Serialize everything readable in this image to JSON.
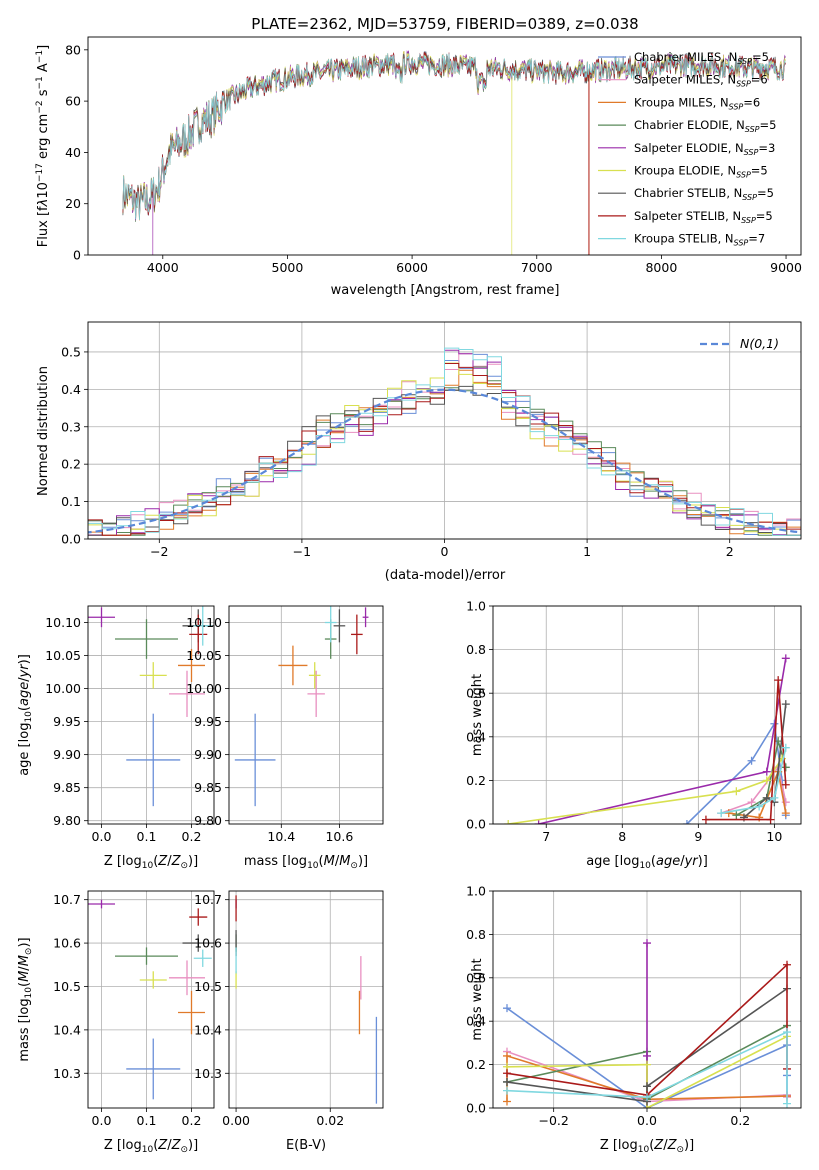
{
  "figure_title": "PLATE=2362, MJD=53759, FIBERID=0389, z=0.038",
  "colors": {
    "Chabrier MILES": "#6a8fd8",
    "Salpeter MILES": "#e88fc0",
    "Kroupa MILES": "#e07a2a",
    "Chabrier ELODIE": "#5a8a5a",
    "Salpeter ELODIE": "#9a2aaa",
    "Kroupa ELODIE": "#d8e050",
    "Chabrier STELIB": "#555555",
    "Salpeter STELIB": "#aa1a1a",
    "Kroupa STELIB": "#80d8e0"
  },
  "legend": [
    {
      "model": "Chabrier MILES",
      "nssp": "5"
    },
    {
      "model": "Salpeter MILES",
      "nssp": "6"
    },
    {
      "model": "Kroupa MILES",
      "nssp": "6"
    },
    {
      "model": "Chabrier ELODIE",
      "nssp": "5"
    },
    {
      "model": "Salpeter ELODIE",
      "nssp": "3"
    },
    {
      "model": "Kroupa ELODIE",
      "nssp": "5"
    },
    {
      "model": "Chabrier STELIB",
      "nssp": "5"
    },
    {
      "model": "Salpeter STELIB",
      "nssp": "5"
    },
    {
      "model": "Kroupa STELIB",
      "nssp": "7"
    }
  ],
  "chart_data": [
    {
      "id": "spectrum",
      "type": "line",
      "xlabel": "wavelength [Angstrom, rest frame]",
      "ylabel_html": "Flux [f<tspan font-style='italic'>λ</tspan>10<tspan dy='-5' font-size='9'>−17</tspan><tspan dy='5'> erg cm</tspan><tspan dy='-5' font-size='9'>−2</tspan><tspan dy='5'> s</tspan><tspan dy='-5' font-size='9'>−1</tspan><tspan dy='5'> A</tspan><tspan dy='-5' font-size='9'>−1</tspan><tspan dy='5'>]</tspan>",
      "xlim": [
        3400,
        9120
      ],
      "ylim": [
        0,
        85
      ],
      "xticks": [
        4000,
        5000,
        6000,
        7000,
        8000,
        9000
      ],
      "yticks": [
        0,
        20,
        40,
        60,
        80
      ],
      "envelope": [
        [
          3680,
          24
        ],
        [
          3800,
          20
        ],
        [
          3900,
          22
        ],
        [
          3960,
          26
        ],
        [
          4050,
          40
        ],
        [
          4200,
          46
        ],
        [
          4300,
          52
        ],
        [
          4400,
          54
        ],
        [
          4500,
          60
        ],
        [
          4700,
          65
        ],
        [
          4900,
          68
        ],
        [
          5100,
          70
        ],
        [
          5400,
          72
        ],
        [
          5700,
          74
        ],
        [
          6000,
          75
        ],
        [
          6300,
          74
        ],
        [
          6600,
          73
        ],
        [
          6900,
          72
        ],
        [
          7200,
          71
        ],
        [
          7500,
          72
        ],
        [
          7800,
          73
        ],
        [
          8100,
          74
        ],
        [
          8400,
          74
        ],
        [
          8700,
          73
        ],
        [
          9000,
          73
        ]
      ],
      "drops": {
        "Kroupa ELODIE": 6800,
        "Salpeter STELIB": 7420,
        "Kroupa MILES": 7420,
        "Salpeter ELODIE": 3920
      }
    },
    {
      "id": "residuals",
      "type": "step",
      "xlabel": "(data-model)/error",
      "ylabel": "Normed distribution",
      "xlim": [
        -2.5,
        2.5
      ],
      "ylim": [
        0,
        0.58
      ],
      "xticks": [
        -2,
        -1,
        0,
        1,
        2
      ],
      "yticks": [
        0.0,
        0.1,
        0.2,
        0.3,
        0.4,
        0.5
      ],
      "legend": "N(0,1)",
      "bin_width": 0.1
    },
    {
      "id": "z_age",
      "type": "errorbar",
      "xlabel": "Z [log10(Z/Zsun)]",
      "ylabel": "age [log10(age/yr)]",
      "xlim": [
        -0.03,
        0.25
      ],
      "ylim": [
        9.795,
        10.125
      ],
      "xticks": [
        0.0,
        0.1,
        0.2
      ],
      "yticks": [
        9.8,
        9.85,
        9.9,
        9.95,
        10.0,
        10.05,
        10.1
      ],
      "points": [
        {
          "m": "Chabrier MILES",
          "x": 0.115,
          "y": 9.892,
          "xe": 0.06,
          "ye": 0.07
        },
        {
          "m": "Salpeter MILES",
          "x": 0.19,
          "y": 9.992,
          "xe": 0.04,
          "ye": 0.035
        },
        {
          "m": "Kroupa MILES",
          "x": 0.2,
          "y": 10.035,
          "xe": 0.03,
          "ye": 0.025
        },
        {
          "m": "Chabrier ELODIE",
          "x": 0.1,
          "y": 10.075,
          "xe": 0.07,
          "ye": 0.03
        },
        {
          "m": "Salpeter ELODIE",
          "x": 0.0,
          "y": 10.108,
          "xe": 0.03,
          "ye": 0.015
        },
        {
          "m": "Kroupa ELODIE",
          "x": 0.115,
          "y": 10.02,
          "xe": 0.03,
          "ye": 0.02
        },
        {
          "m": "Chabrier STELIB",
          "x": 0.215,
          "y": 10.095,
          "xe": 0.035,
          "ye": 0.025
        },
        {
          "m": "Salpeter STELIB",
          "x": 0.215,
          "y": 10.082,
          "xe": 0.02,
          "ye": 0.03
        },
        {
          "m": "Kroupa STELIB",
          "x": 0.225,
          "y": 10.095,
          "xe": 0.02,
          "ye": 0.03
        }
      ]
    },
    {
      "id": "mass_age",
      "type": "errorbar",
      "xlabel": "mass [log10(M/Msun)]",
      "ylabel": "",
      "xlim": [
        10.22,
        10.75
      ],
      "ylim": [
        9.795,
        10.125
      ],
      "xticks": [
        10.4,
        10.6
      ],
      "yticks": [
        9.8,
        9.85,
        9.9,
        9.95,
        10.0,
        10.05,
        10.1
      ],
      "points": [
        {
          "m": "Chabrier MILES",
          "x": 10.31,
          "y": 9.892,
          "xe": 0.07,
          "ye": 0.07
        },
        {
          "m": "Salpeter MILES",
          "x": 10.52,
          "y": 9.992,
          "xe": 0.03,
          "ye": 0.035
        },
        {
          "m": "Kroupa MILES",
          "x": 10.44,
          "y": 10.035,
          "xe": 0.05,
          "ye": 0.03
        },
        {
          "m": "Chabrier ELODIE",
          "x": 10.57,
          "y": 10.075,
          "xe": 0.02,
          "ye": 0.03
        },
        {
          "m": "Salpeter ELODIE",
          "x": 10.69,
          "y": 10.108,
          "xe": 0.01,
          "ye": 0.015
        },
        {
          "m": "Kroupa ELODIE",
          "x": 10.515,
          "y": 10.02,
          "xe": 0.02,
          "ye": 0.02
        },
        {
          "m": "Chabrier STELIB",
          "x": 10.6,
          "y": 10.095,
          "xe": 0.02,
          "ye": 0.025
        },
        {
          "m": "Salpeter STELIB",
          "x": 10.66,
          "y": 10.082,
          "xe": 0.02,
          "ye": 0.03
        },
        {
          "m": "Kroupa STELIB",
          "x": 10.57,
          "y": 10.1,
          "xe": 0.02,
          "ye": 0.03
        }
      ]
    },
    {
      "id": "age_weight",
      "type": "line",
      "xlabel": "age [log10(age/yr)]",
      "ylabel": "mass weight",
      "xlim": [
        6.3,
        10.35
      ],
      "ylim": [
        0,
        1.0
      ],
      "xticks": [
        7,
        8,
        9,
        10
      ],
      "yticks": [
        0.0,
        0.2,
        0.4,
        0.6,
        0.8,
        1.0
      ],
      "series": [
        {
          "m": "Chabrier MILES",
          "x": [
            8.85,
            9.7,
            10.0,
            10.1,
            10.15
          ],
          "y": [
            0.0,
            0.29,
            0.46,
            0.2,
            0.04
          ]
        },
        {
          "m": "Salpeter MILES",
          "x": [
            9.3,
            9.7,
            10.05,
            10.15
          ],
          "y": [
            0.05,
            0.1,
            0.26,
            0.1
          ]
        },
        {
          "m": "Kroupa MILES",
          "x": [
            9.4,
            9.8,
            10.05,
            10.15
          ],
          "y": [
            0.05,
            0.03,
            0.24,
            0.05
          ]
        },
        {
          "m": "Chabrier ELODIE",
          "x": [
            9.5,
            9.9,
            10.05,
            10.15
          ],
          "y": [
            0.04,
            0.12,
            0.38,
            0.26
          ]
        },
        {
          "m": "Salpeter ELODIE",
          "x": [
            6.9,
            9.9,
            10.15
          ],
          "y": [
            0.0,
            0.24,
            0.76
          ]
        },
        {
          "m": "Kroupa ELODIE",
          "x": [
            6.5,
            9.5,
            9.9,
            10.1
          ],
          "y": [
            0.0,
            0.15,
            0.2,
            0.3
          ]
        },
        {
          "m": "Chabrier STELIB",
          "x": [
            9.6,
            9.9,
            10.0,
            10.15
          ],
          "y": [
            0.03,
            0.12,
            0.1,
            0.55
          ]
        },
        {
          "m": "Salpeter STELIB",
          "x": [
            9.1,
            9.95,
            10.05,
            10.15
          ],
          "y": [
            0.02,
            0.02,
            0.66,
            0.18
          ]
        },
        {
          "m": "Kroupa STELIB",
          "x": [
            9.3,
            9.8,
            10.0,
            10.15
          ],
          "y": [
            0.05,
            0.08,
            0.12,
            0.35
          ]
        }
      ]
    },
    {
      "id": "z_mass",
      "type": "errorbar",
      "xlabel": "Z [log10(Z/Zsun)]",
      "ylabel": "mass [log10(M/Msun)]",
      "xlim": [
        -0.03,
        0.25
      ],
      "ylim": [
        10.22,
        10.72
      ],
      "xticks": [
        0.0,
        0.1,
        0.2
      ],
      "yticks": [
        10.3,
        10.4,
        10.5,
        10.6,
        10.7
      ],
      "points": [
        {
          "m": "Chabrier MILES",
          "x": 0.115,
          "y": 10.31,
          "xe": 0.06,
          "ye": 0.07
        },
        {
          "m": "Salpeter MILES",
          "x": 0.19,
          "y": 10.52,
          "xe": 0.04,
          "ye": 0.04
        },
        {
          "m": "Kroupa MILES",
          "x": 0.2,
          "y": 10.44,
          "xe": 0.03,
          "ye": 0.05
        },
        {
          "m": "Chabrier ELODIE",
          "x": 0.1,
          "y": 10.57,
          "xe": 0.07,
          "ye": 0.02
        },
        {
          "m": "Salpeter ELODIE",
          "x": 0.0,
          "y": 10.69,
          "xe": 0.03,
          "ye": 0.01
        },
        {
          "m": "Kroupa ELODIE",
          "x": 0.115,
          "y": 10.515,
          "xe": 0.03,
          "ye": 0.02
        },
        {
          "m": "Chabrier STELIB",
          "x": 0.215,
          "y": 10.6,
          "xe": 0.035,
          "ye": 0.02
        },
        {
          "m": "Salpeter STELIB",
          "x": 0.215,
          "y": 10.66,
          "xe": 0.02,
          "ye": 0.02
        },
        {
          "m": "Kroupa STELIB",
          "x": 0.225,
          "y": 10.565,
          "xe": 0.02,
          "ye": 0.02
        }
      ]
    },
    {
      "id": "ebv_mass",
      "type": "errorbar",
      "xlabel": "E(B-V)",
      "ylabel": "",
      "xlim": [
        -0.0015,
        0.0312
      ],
      "ylim": [
        10.22,
        10.72
      ],
      "xticks": [
        0.0,
        0.02
      ],
      "xticklabels": [
        "0.00",
        "0.02"
      ],
      "yticks": [
        10.3,
        10.4,
        10.5,
        10.6,
        10.7
      ],
      "points": [
        {
          "m": "Chabrier MILES",
          "x": 0.0298,
          "y": 10.33,
          "xe": 0.0,
          "ye": 0.1
        },
        {
          "m": "Salpeter MILES",
          "x": 0.0265,
          "y": 10.52,
          "xe": 0.0,
          "ye": 0.05
        },
        {
          "m": "Kroupa MILES",
          "x": 0.0262,
          "y": 10.44,
          "xe": 0.0,
          "ye": 0.05
        },
        {
          "m": "Chabrier ELODIE",
          "x": 0.0,
          "y": 10.6,
          "xe": 0.0,
          "ye": 0.02
        },
        {
          "m": "Salpeter ELODIE",
          "x": 0.0,
          "y": 10.69,
          "xe": 0.0,
          "ye": 0.01
        },
        {
          "m": "Kroupa ELODIE",
          "x": 0.0,
          "y": 10.515,
          "xe": 0.0,
          "ye": 0.02
        },
        {
          "m": "Chabrier STELIB",
          "x": 0.0,
          "y": 10.6,
          "xe": 0.0,
          "ye": 0.03
        },
        {
          "m": "Salpeter STELIB",
          "x": 0.0,
          "y": 10.68,
          "xe": 0.0,
          "ye": 0.03
        },
        {
          "m": "Kroupa STELIB",
          "x": 0.0,
          "y": 10.56,
          "xe": 0.0,
          "ye": 0.03
        }
      ]
    },
    {
      "id": "z_weight",
      "type": "line",
      "xlabel": "Z [log10(Z/Zsun)]",
      "ylabel": "mass weight",
      "xlim": [
        -0.33,
        0.33
      ],
      "ylim": [
        0,
        1.0
      ],
      "xticks": [
        -0.2,
        0.0,
        0.2
      ],
      "yticks": [
        0.0,
        0.2,
        0.4,
        0.6,
        0.8,
        1.0
      ],
      "series": [
        {
          "m": "Chabrier MILES",
          "x": [
            -0.3,
            0.0,
            0.3,
            0.3,
            0.3
          ],
          "y": [
            0.46,
            0.0,
            0.29,
            0.15,
            0.06
          ]
        },
        {
          "m": "Salpeter MILES",
          "x": [
            -0.3,
            0.0,
            0.3,
            0.3
          ],
          "y": [
            0.26,
            0.03,
            0.06,
            0.05
          ]
        },
        {
          "m": "Kroupa MILES",
          "x": [
            -0.3,
            -0.3,
            0.0,
            0.3
          ],
          "y": [
            0.03,
            0.24,
            0.04,
            0.055
          ]
        },
        {
          "m": "Chabrier ELODIE",
          "x": [
            -0.3,
            0.0,
            0.0,
            0.3
          ],
          "y": [
            0.12,
            0.26,
            0.04,
            0.38
          ]
        },
        {
          "m": "Salpeter ELODIE",
          "x": [
            0.0,
            0.0,
            0.0
          ],
          "y": [
            0.0,
            0.76,
            0.24
          ]
        },
        {
          "m": "Kroupa ELODIE",
          "x": [
            -0.3,
            0.0,
            0.0,
            0.3
          ],
          "y": [
            0.19,
            0.2,
            0.0,
            0.33
          ]
        },
        {
          "m": "Chabrier STELIB",
          "x": [
            -0.3,
            0.0,
            0.0,
            0.3
          ],
          "y": [
            0.12,
            0.03,
            0.1,
            0.55
          ]
        },
        {
          "m": "Salpeter STELIB",
          "x": [
            -0.3,
            0.0,
            0.3,
            0.3
          ],
          "y": [
            0.16,
            0.06,
            0.66,
            0.18
          ]
        },
        {
          "m": "Kroupa STELIB",
          "x": [
            -0.3,
            0.0,
            0.3,
            0.3
          ],
          "y": [
            0.08,
            0.05,
            0.35,
            0.02
          ]
        }
      ]
    }
  ]
}
